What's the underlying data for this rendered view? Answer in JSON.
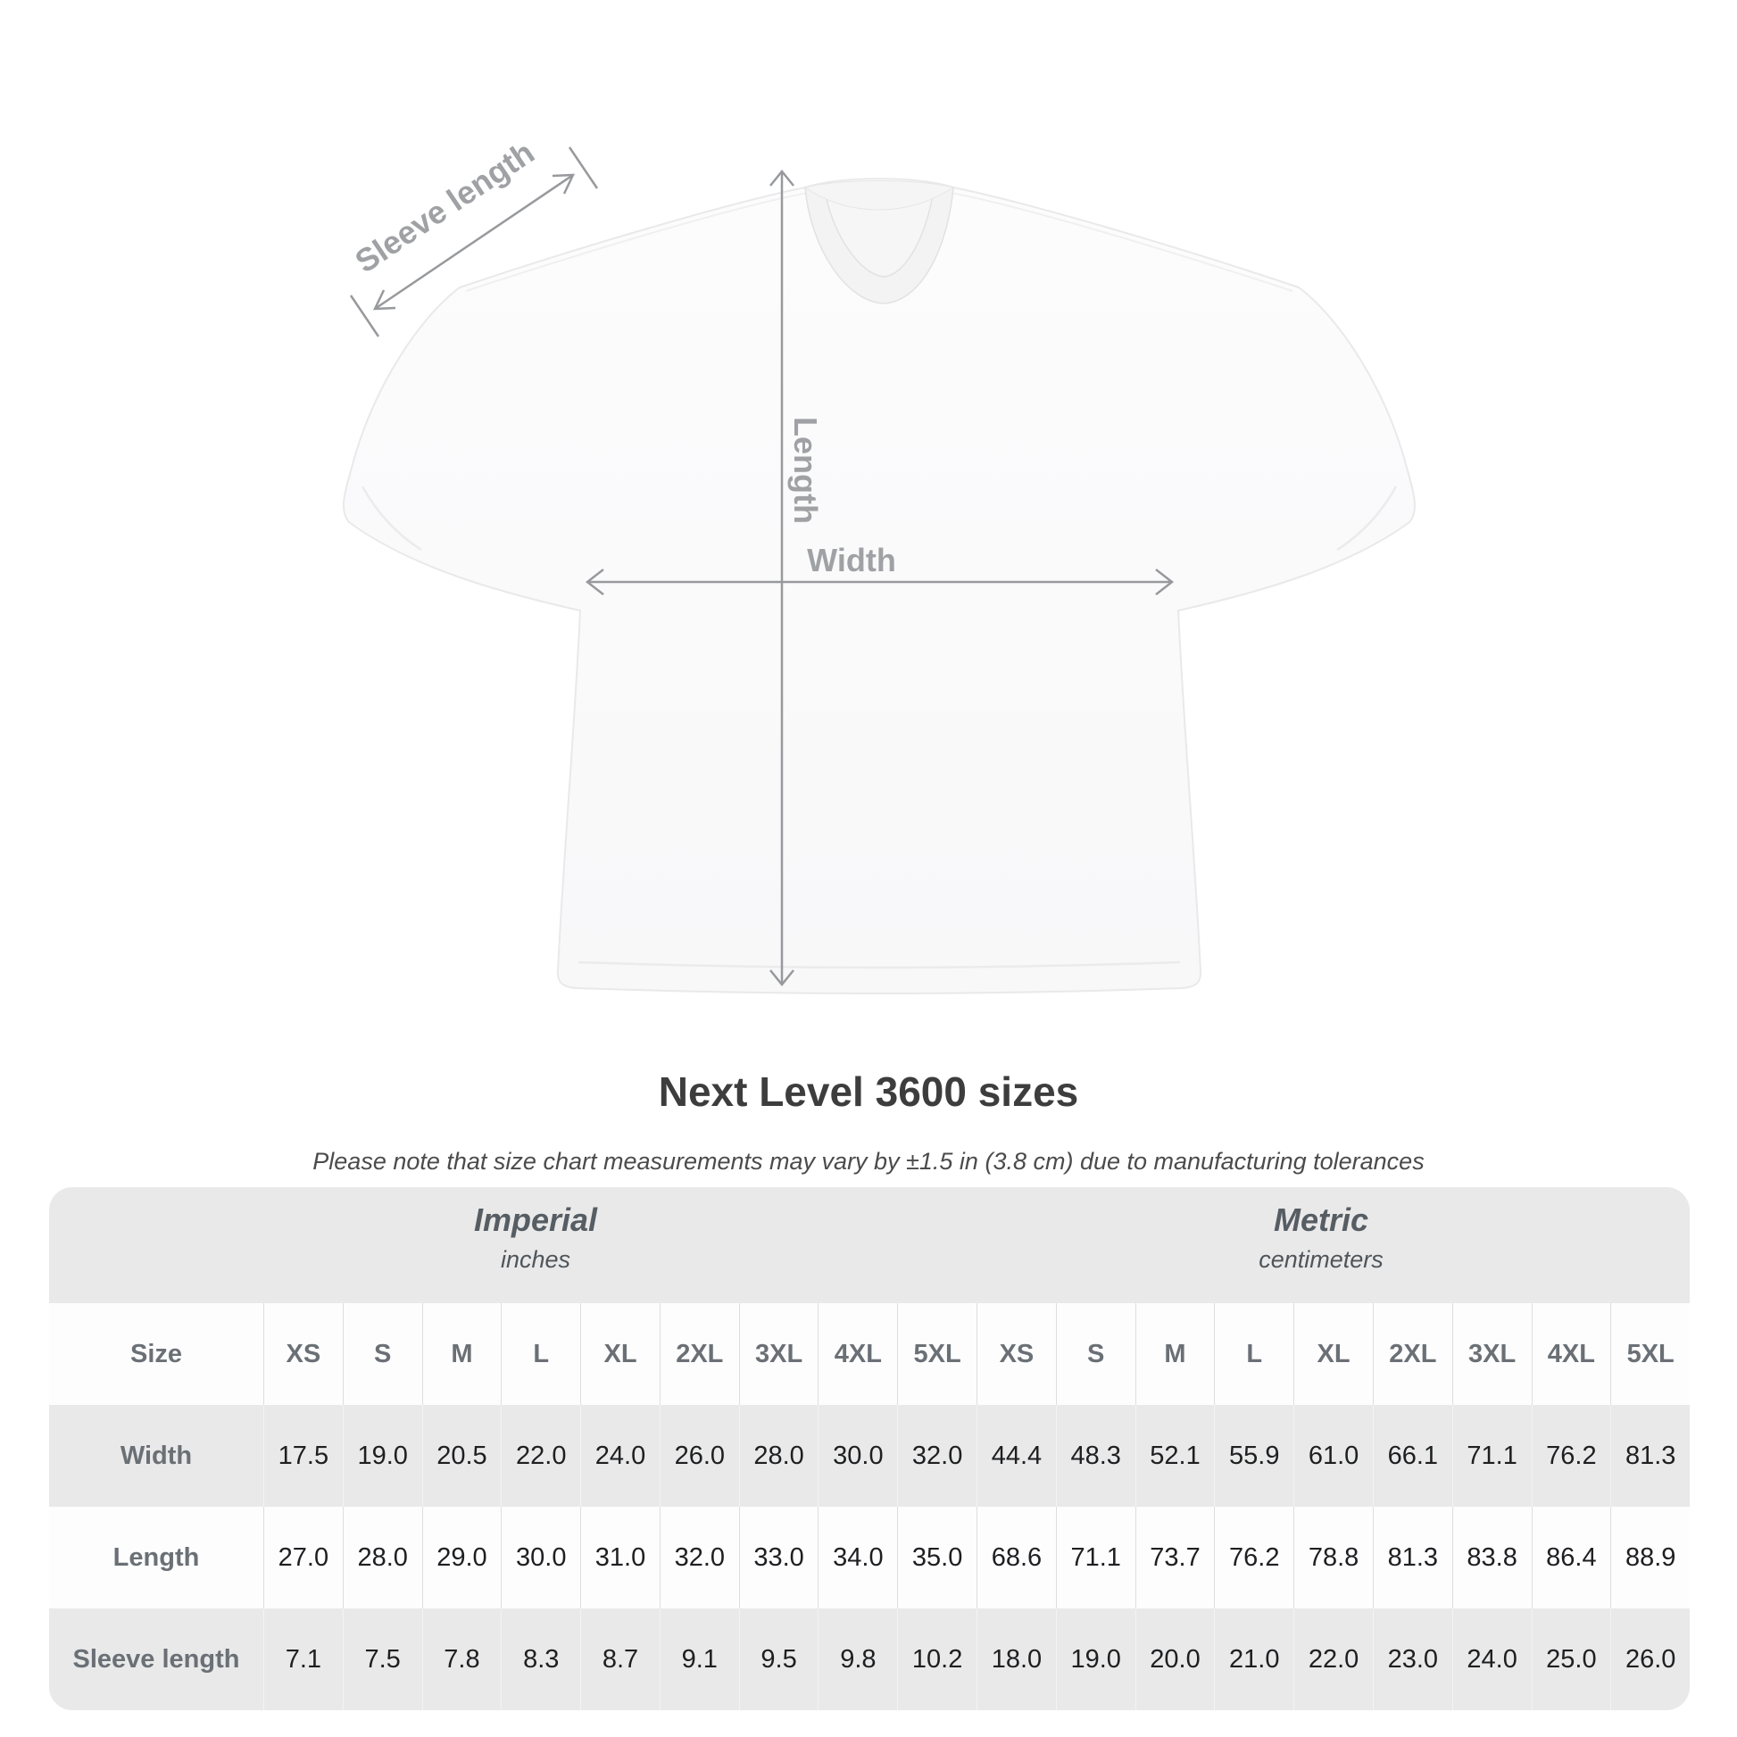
{
  "diagram": {
    "labels": {
      "sleeve_length": "Sleeve length",
      "length": "Length",
      "width": "Width"
    }
  },
  "title": "Next Level 3600 sizes",
  "subtitle": "Please note that size chart measurements may vary by ±1.5 in (3.8 cm) due to manufacturing tolerances",
  "table": {
    "unit_groups": [
      {
        "name": "Imperial",
        "unit": "inches"
      },
      {
        "name": "Metric",
        "unit": "centimeters"
      }
    ],
    "size_header_label": "Size",
    "size_columns": [
      "XS",
      "S",
      "M",
      "L",
      "XL",
      "2XL",
      "3XL",
      "4XL",
      "5XL",
      "XS",
      "S",
      "M",
      "L",
      "XL",
      "2XL",
      "3XL",
      "4XL",
      "5XL"
    ],
    "rows": [
      {
        "label": "Width",
        "values": [
          "17.5",
          "19.0",
          "20.5",
          "22.0",
          "24.0",
          "26.0",
          "28.0",
          "30.0",
          "32.0",
          "44.4",
          "48.3",
          "52.1",
          "55.9",
          "61.0",
          "66.1",
          "71.1",
          "76.2",
          "81.3"
        ]
      },
      {
        "label": "Length",
        "values": [
          "27.0",
          "28.0",
          "29.0",
          "30.0",
          "31.0",
          "32.0",
          "33.0",
          "34.0",
          "35.0",
          "68.6",
          "71.1",
          "73.7",
          "76.2",
          "78.8",
          "81.3",
          "83.8",
          "86.4",
          "88.9"
        ]
      },
      {
        "label": "Sleeve length",
        "values": [
          "7.1",
          "7.5",
          "7.8",
          "8.3",
          "8.7",
          "9.1",
          "9.5",
          "9.8",
          "10.2",
          "18.0",
          "19.0",
          "20.0",
          "21.0",
          "22.0",
          "23.0",
          "24.0",
          "25.0",
          "26.0"
        ]
      }
    ]
  },
  "colors": {
    "panel_bg": "#E9E9E9",
    "row_white": "#FDFDFE",
    "header_text": "#6A7075",
    "data_text": "#1E1F21",
    "measure_line": "#97999C",
    "measure_label": "#9FA1A4",
    "title_text": "#3D3D3D"
  }
}
